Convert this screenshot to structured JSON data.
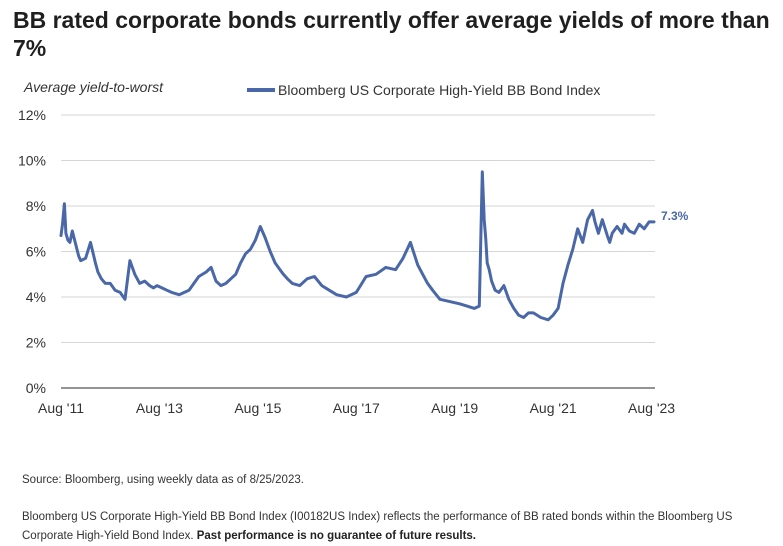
{
  "title": "BB rated corporate bonds currently offer average yields of more than 7%",
  "source": "Source: Bloomberg, using weekly data as of 8/25/2023.",
  "note_text": "Bloomberg US Corporate High-Yield BB Bond Index (I00182US Index) reflects the performance of BB rated bonds within the Bloomberg US Corporate High-Yield Bond Index. ",
  "note_bold": "Past performance is no guarantee of future results.",
  "colors": {
    "series": "#4a68a8",
    "grid": "#d6d6d6",
    "axis": "#555555",
    "text": "#333333"
  },
  "chart_data": {
    "type": "line",
    "title": "BB rated corporate bonds currently offer average yields of more than 7%",
    "ylabel": "Average yield-to-worst",
    "xlabel": "",
    "ylim": [
      0,
      12
    ],
    "xlim": [
      2011.6,
      2023.67
    ],
    "yticks": [
      "0%",
      "2%",
      "4%",
      "6%",
      "8%",
      "10%",
      "12%"
    ],
    "xticks": [
      "Aug '11",
      "Aug '13",
      "Aug '15",
      "Aug '17",
      "Aug '19",
      "Aug '21",
      "Aug '23"
    ],
    "grid": true,
    "legend_position": "top",
    "end_label": "7.3%",
    "series": [
      {
        "name": "Bloomberg US Corporate High-Yield BB Bond Index",
        "x": [
          2011.6,
          2011.63,
          2011.67,
          2011.7,
          2011.74,
          2011.78,
          2011.83,
          2011.9,
          2011.96,
          2012.0,
          2012.1,
          2012.2,
          2012.3,
          2012.35,
          2012.42,
          2012.5,
          2012.6,
          2012.7,
          2012.8,
          2012.9,
          2013.0,
          2013.1,
          2013.2,
          2013.3,
          2013.4,
          2013.48,
          2013.55,
          2013.65,
          2013.75,
          2013.85,
          2014.0,
          2014.2,
          2014.4,
          2014.55,
          2014.65,
          2014.75,
          2014.85,
          2014.95,
          2015.05,
          2015.15,
          2015.25,
          2015.35,
          2015.45,
          2015.55,
          2015.65,
          2015.75,
          2015.85,
          2015.95,
          2016.05,
          2016.12,
          2016.2,
          2016.3,
          2016.45,
          2016.6,
          2016.75,
          2016.9,
          2017.05,
          2017.2,
          2017.4,
          2017.6,
          2017.8,
          2018.0,
          2018.2,
          2018.4,
          2018.55,
          2018.7,
          2018.85,
          2018.95,
          2019.05,
          2019.15,
          2019.3,
          2019.5,
          2019.7,
          2019.85,
          2020.0,
          2020.1,
          2020.16,
          2020.2,
          2020.23,
          2020.26,
          2020.3,
          2020.35,
          2020.42,
          2020.5,
          2020.6,
          2020.7,
          2020.8,
          2020.9,
          2021.0,
          2021.1,
          2021.2,
          2021.35,
          2021.5,
          2021.6,
          2021.7,
          2021.8,
          2021.9,
          2022.0,
          2022.1,
          2022.2,
          2022.3,
          2022.4,
          2022.45,
          2022.52,
          2022.6,
          2022.7,
          2022.75,
          2022.8,
          2022.9,
          2023.0,
          2023.05,
          2023.15,
          2023.25,
          2023.35,
          2023.45,
          2023.55,
          2023.65
        ],
        "values": [
          6.7,
          7.2,
          8.1,
          6.8,
          6.5,
          6.4,
          6.9,
          6.3,
          5.8,
          5.6,
          5.7,
          6.4,
          5.5,
          5.1,
          4.8,
          4.6,
          4.6,
          4.3,
          4.2,
          3.9,
          5.6,
          5.0,
          4.6,
          4.7,
          4.5,
          4.4,
          4.5,
          4.4,
          4.3,
          4.2,
          4.1,
          4.3,
          4.9,
          5.1,
          5.3,
          4.7,
          4.5,
          4.6,
          4.8,
          5.0,
          5.5,
          5.9,
          6.1,
          6.5,
          7.1,
          6.6,
          6.0,
          5.5,
          5.2,
          5.0,
          4.8,
          4.6,
          4.5,
          4.8,
          4.9,
          4.5,
          4.3,
          4.1,
          4.0,
          4.2,
          4.9,
          5.0,
          5.3,
          5.2,
          5.7,
          6.4,
          5.4,
          5.0,
          4.6,
          4.3,
          3.9,
          3.8,
          3.7,
          3.6,
          3.5,
          3.6,
          9.5,
          7.4,
          6.6,
          5.5,
          5.2,
          4.7,
          4.3,
          4.2,
          4.5,
          3.9,
          3.5,
          3.2,
          3.1,
          3.3,
          3.3,
          3.1,
          3.0,
          3.2,
          3.5,
          4.6,
          5.4,
          6.1,
          7.0,
          6.4,
          7.4,
          7.8,
          7.3,
          6.8,
          7.4,
          6.7,
          6.4,
          6.8,
          7.1,
          6.8,
          7.2,
          6.9,
          6.8,
          7.2,
          7.0,
          7.3,
          7.3
        ]
      }
    ]
  }
}
